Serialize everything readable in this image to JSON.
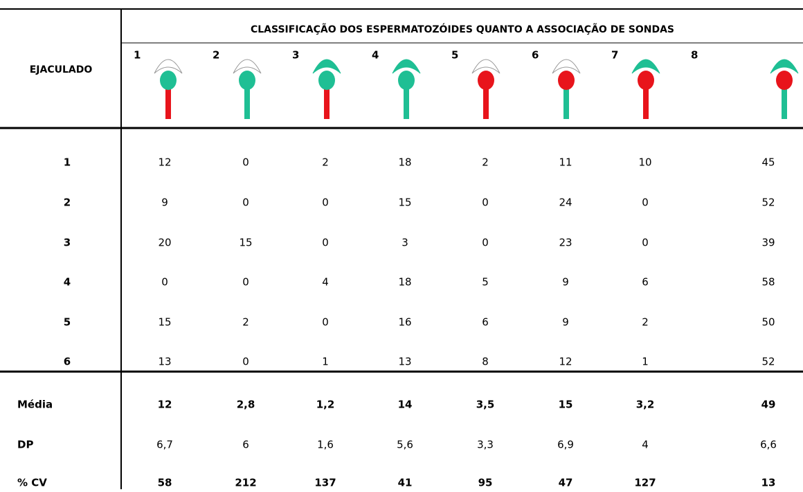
{
  "header": {
    "title": "CLASSIFICAÇÃO DOS ESPERMATOZÓIDES QUANTO A ASSOCIAÇÃO DE SONDAS",
    "row_header": "EJACULADO",
    "columns": [
      "1",
      "2",
      "3",
      "4",
      "5",
      "6",
      "7",
      "8"
    ]
  },
  "rows": [
    {
      "label": "1",
      "values": [
        12,
        0,
        2,
        18,
        2,
        11,
        10,
        45
      ]
    },
    {
      "label": "2",
      "values": [
        9,
        0,
        0,
        15,
        0,
        24,
        0,
        52
      ]
    },
    {
      "label": "3",
      "values": [
        20,
        15,
        0,
        3,
        0,
        23,
        0,
        39
      ]
    },
    {
      "label": "4",
      "values": [
        0,
        0,
        4,
        18,
        5,
        9,
        6,
        58
      ]
    },
    {
      "label": "5",
      "values": [
        15,
        2,
        0,
        16,
        6,
        9,
        2,
        50
      ]
    },
    {
      "label": "6",
      "values": [
        13,
        0,
        1,
        13,
        8,
        12,
        1,
        52
      ]
    }
  ],
  "stats": [
    {
      "label": "Média",
      "values": [
        12,
        "2,8",
        "1,2",
        14,
        "3,5",
        15,
        "3,2",
        49
      ]
    },
    {
      "label": "DP",
      "values": [
        "6,7",
        6,
        "1,6",
        "5,6",
        "3,3",
        "6,9",
        4,
        "6,6"
      ]
    },
    {
      "label": "% CV",
      "values": [
        58,
        212,
        137,
        41,
        95,
        47,
        127,
        13
      ]
    }
  ]
}
